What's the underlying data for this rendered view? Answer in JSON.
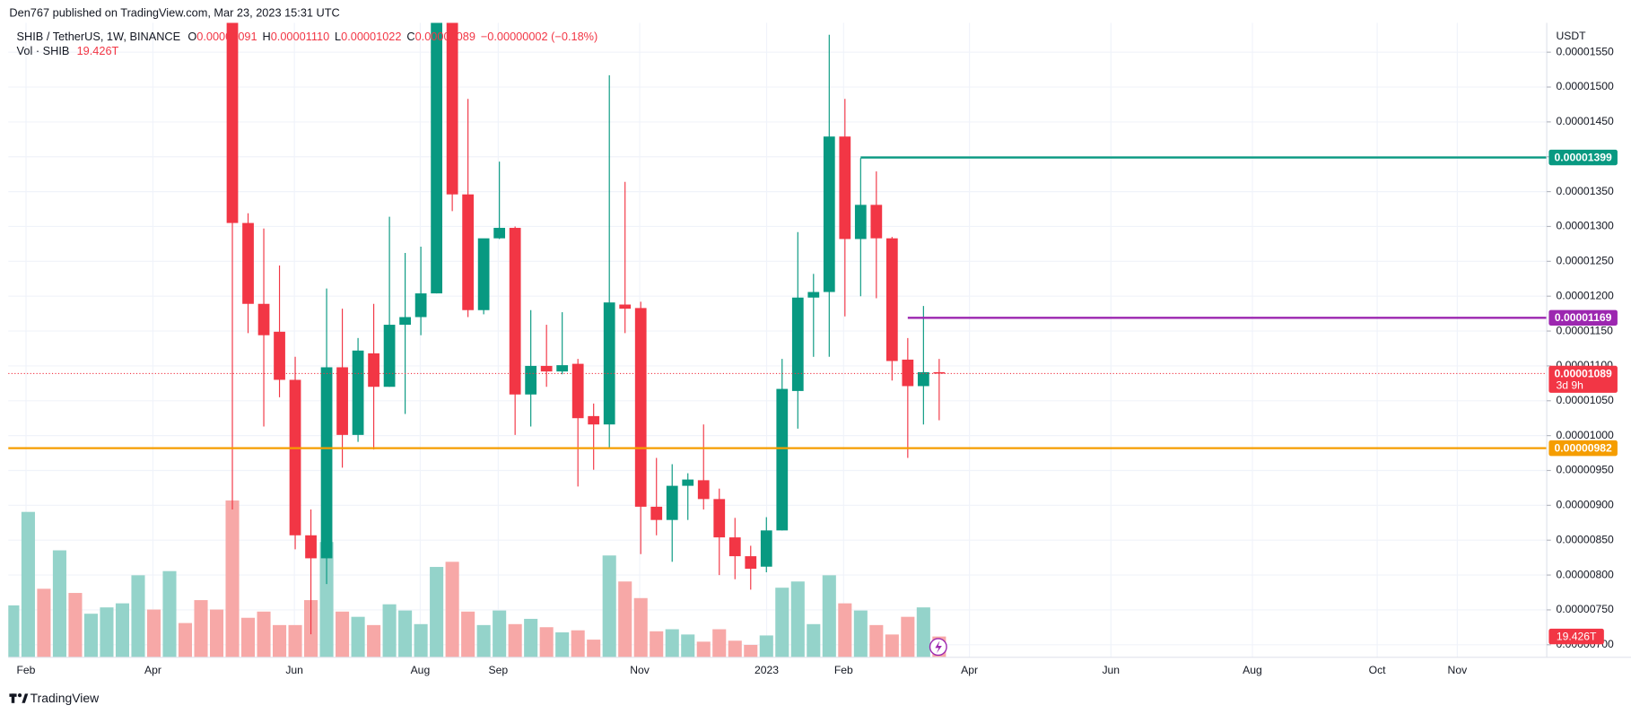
{
  "header": {
    "author_line": "Den767 published on TradingView.com, Mar 23, 2023 15:31 UTC",
    "symbol": "SHIB / TetherUS, 1W, BINANCE",
    "ohlc": [
      {
        "key": "O",
        "value": "0.00001091"
      },
      {
        "key": "H",
        "value": "0.00001110"
      },
      {
        "key": "L",
        "value": "0.00001022"
      },
      {
        "key": "C",
        "value": "0.00001089"
      }
    ],
    "change": "−0.00000002 (−0.18%)",
    "volume_name": "Vol · SHIB"
  },
  "footer": {
    "brand": "TradingView"
  },
  "chart_data": {
    "type": "candlestick",
    "currency": "USDT",
    "grid": true,
    "up_color": "#089981",
    "down_color": "#f23645",
    "x_labels": [
      "Feb",
      "Apr",
      "Jun",
      "Aug",
      "Sep",
      "Nov",
      "2023",
      "Feb",
      "Apr",
      "Jun",
      "Aug",
      "Oct",
      "Nov"
    ],
    "ylim": [
      6.82e-06,
      1.592e-05
    ],
    "yticks": [
      {
        "value": 1.55e-05,
        "label": "0.00001550"
      },
      {
        "value": 1.5e-05,
        "label": "0.00001500"
      },
      {
        "value": 1.45e-05,
        "label": "0.00001450"
      },
      {
        "value": 1.4e-05,
        "label": "0.00001400"
      },
      {
        "value": 1.35e-05,
        "label": "0.00001350"
      },
      {
        "value": 1.3e-05,
        "label": "0.00001300"
      },
      {
        "value": 1.25e-05,
        "label": "0.00001250"
      },
      {
        "value": 1.2e-05,
        "label": "0.00001200"
      },
      {
        "value": 1.15e-05,
        "label": "0.00001150"
      },
      {
        "value": 1.1e-05,
        "label": "0.00001100"
      },
      {
        "value": 1.05e-05,
        "label": "0.00001050"
      },
      {
        "value": 1e-05,
        "label": "0.00001000"
      },
      {
        "value": 9.5e-06,
        "label": "0.00000950"
      },
      {
        "value": 9e-06,
        "label": "0.00000900"
      },
      {
        "value": 8.5e-06,
        "label": "0.00000850"
      },
      {
        "value": 8e-06,
        "label": "0.00000800"
      },
      {
        "value": 7.5e-06,
        "label": "0.00000750"
      },
      {
        "value": 7e-06,
        "label": "0.00000700"
      }
    ],
    "candles": {
      "open": [
        null,
        null,
        null,
        null,
        null,
        null,
        null,
        null,
        null,
        null,
        null,
        null,
        null,
        null,
        1.78e-05,
        1.305e-05,
        1.189e-05,
        1.149e-05,
        1.08e-05,
        8.57e-06,
        8.24e-06,
        1.098e-05,
        1.001e-05,
        1.118e-05,
        1.07e-05,
        1.159e-05,
        1.17e-05,
        1.204e-05,
        1.61e-05,
        1.346e-05,
        1.18e-05,
        1.283e-05,
        1.298e-05,
        1.059e-05,
        1.1e-05,
        1.092e-05,
        1.103e-05,
        1.028e-05,
        1.016e-05,
        1.188e-05,
        1.183e-05,
        8.98e-06,
        8.79e-06,
        9.28e-06,
        9.36e-06,
        9.09e-06,
        8.54e-06,
        8.27e-06,
        8.12e-06,
        8.64e-06,
        1.064e-05,
        1.198e-05,
        1.206e-05,
        1.429e-05,
        1.282e-05,
        1.331e-05,
        1.283e-05,
        1.109e-05,
        1.071e-05,
        1.091e-05
      ],
      "high": [
        null,
        null,
        null,
        null,
        null,
        null,
        null,
        null,
        null,
        null,
        null,
        null,
        null,
        null,
        1.8e-05,
        1.319e-05,
        1.297e-05,
        1.244e-05,
        1.113e-05,
        8.94e-06,
        1.211e-05,
        1.182e-05,
        1.14e-05,
        1.189e-05,
        1.314e-05,
        1.262e-05,
        1.271e-05,
        1.615e-05,
        1.64e-05,
        1.483e-05,
        1.222e-05,
        1.393e-05,
        1.3e-05,
        1.18e-05,
        1.159e-05,
        1.177e-05,
        1.11e-05,
        1.046e-05,
        1.517e-05,
        1.364e-05,
        1.192e-05,
        9.68e-06,
        9.59e-06,
        9.46e-06,
        1.016e-05,
        9.24e-06,
        8.82e-06,
        8.42e-06,
        8.83e-06,
        1.11e-05,
        1.292e-05,
        1.232e-05,
        1.575e-05,
        1.483e-05,
        1.398e-05,
        1.379e-05,
        1.285e-05,
        1.14e-05,
        1.186e-05,
        1.11e-05
      ],
      "low": [
        null,
        null,
        null,
        null,
        null,
        null,
        null,
        null,
        null,
        null,
        null,
        null,
        null,
        null,
        8.94e-06,
        1.147e-05,
        1.013e-05,
        1.055e-05,
        8.37e-06,
        7.15e-06,
        7.87e-06,
        9.54e-06,
        9.91e-06,
        9.8e-06,
        1.07e-05,
        1.031e-05,
        1.144e-05,
        1.204e-05,
        1.322e-05,
        1.17e-05,
        1.174e-05,
        1.282e-05,
        1.001e-05,
        1.013e-05,
        1.07e-05,
        1.088e-05,
        9.27e-06,
        9.51e-06,
        9.83e-06,
        1.147e-05,
        8.3e-06,
        8.57e-06,
        8.19e-06,
        8.79e-06,
        8.94e-06,
        8e-06,
        7.94e-06,
        7.79e-06,
        8.04e-06,
        8.64e-06,
        1.01e-05,
        1.113e-05,
        1.113e-05,
        1.171e-05,
        1.2e-05,
        1.197e-05,
        1.079e-05,
        9.68e-06,
        1.016e-05,
        1.022e-05
      ],
      "close": [
        null,
        null,
        null,
        null,
        null,
        null,
        null,
        null,
        null,
        null,
        null,
        null,
        null,
        null,
        1.305e-05,
        1.189e-05,
        1.144e-05,
        1.08e-05,
        8.57e-06,
        8.24e-06,
        1.098e-05,
        1.001e-05,
        1.122e-05,
        1.07e-05,
        1.159e-05,
        1.17e-05,
        1.204e-05,
        1.61e-05,
        1.346e-05,
        1.18e-05,
        1.283e-05,
        1.298e-05,
        1.059e-05,
        1.1e-05,
        1.092e-05,
        1.101e-05,
        1.025e-05,
        1.016e-05,
        1.191e-05,
        1.182e-05,
        8.98e-06,
        8.79e-06,
        9.28e-06,
        9.37e-06,
        9.09e-06,
        8.54e-06,
        8.27e-06,
        8.09e-06,
        8.64e-06,
        1.067e-05,
        1.198e-05,
        1.206e-05,
        1.429e-05,
        1.282e-05,
        1.331e-05,
        1.283e-05,
        1.107e-05,
        1.071e-05,
        1.091e-05,
        1.089e-05
      ]
    },
    "volume": {
      "name": "Vol · SHIB",
      "values": [
        48.5,
        135.8,
        64,
        99.9,
        60.1,
        40.7,
        46.6,
        50.4,
        76.6,
        44.6,
        80.5,
        32,
        53.4,
        44.6,
        146.5,
        36.9,
        42.7,
        30.1,
        30.1,
        53.4,
        107.7,
        42.7,
        37.8,
        30.1,
        49.5,
        43.7,
        31,
        84.4,
        89.2,
        42.7,
        30.1,
        43.7,
        31,
        35.9,
        28.1,
        23.3,
        25.2,
        16.5,
        95.1,
        70.8,
        55.3,
        24.3,
        26.2,
        21.3,
        14.6,
        26.2,
        15.5,
        11.6,
        20.4,
        65,
        70.8,
        31,
        76.6,
        50.4,
        43.7,
        30.1,
        21.3,
        37.8,
        46.6,
        19.426
      ],
      "last_label": "19.426T",
      "colors": [
        "#94d3ca",
        "#94d3ca",
        "#f7a8a7",
        "#94d3ca",
        "#f7a8a7",
        "#94d3ca",
        "#94d3ca",
        "#94d3ca",
        "#94d3ca",
        "#f7a8a7",
        "#94d3ca",
        "#f7a8a7",
        "#f7a8a7",
        "#f7a8a7",
        "#f7a8a7",
        "#f7a8a7",
        "#f7a8a7",
        "#f7a8a7",
        "#f7a8a7",
        "#f7a8a7",
        "#94d3ca",
        "#f7a8a7",
        "#94d3ca",
        "#f7a8a7",
        "#94d3ca",
        "#94d3ca",
        "#94d3ca",
        "#94d3ca",
        "#f7a8a7",
        "#f7a8a7",
        "#94d3ca",
        "#94d3ca",
        "#f7a8a7",
        "#94d3ca",
        "#f7a8a7",
        "#94d3ca",
        "#f7a8a7",
        "#f7a8a7",
        "#94d3ca",
        "#f7a8a7",
        "#f7a8a7",
        "#f7a8a7",
        "#94d3ca",
        "#94d3ca",
        "#f7a8a7",
        "#f7a8a7",
        "#f7a8a7",
        "#f7a8a7",
        "#94d3ca",
        "#94d3ca",
        "#94d3ca",
        "#94d3ca",
        "#94d3ca",
        "#f7a8a7",
        "#94d3ca",
        "#f7a8a7",
        "#f7a8a7",
        "#f7a8a7",
        "#94d3ca",
        "#f7a8a7"
      ]
    },
    "levels": [
      {
        "value": 1.399e-05,
        "label": "0.00001399",
        "color": "#089981"
      },
      {
        "value": 1.169e-05,
        "label": "0.00001169",
        "color": "#9c27b0"
      },
      {
        "value": 9.82e-06,
        "label": "0.00000982",
        "color": "#f59d00"
      }
    ],
    "last_price": {
      "value": 1.089e-05,
      "label": "0.00001089",
      "countdown": "3d 9h",
      "color": "#f23645"
    }
  }
}
